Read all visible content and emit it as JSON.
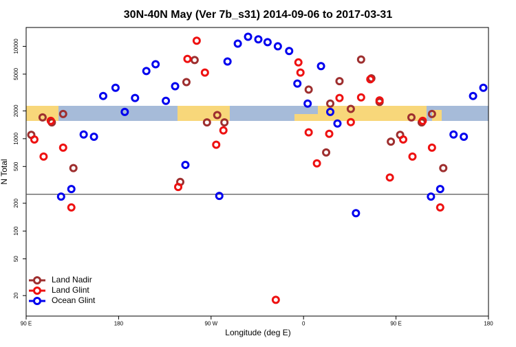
{
  "chart_data": {
    "type": "scatter",
    "title": "30N-40N May (Ver 7b_s31)   2014-09-06 to 2017-03-31",
    "x_label": "Longitude (deg E)",
    "y_label": "N Total",
    "log_y": true,
    "legend": "bottom-left",
    "reference_line": 250,
    "xlim": [
      -270,
      180
    ],
    "xticks": [
      {
        "value": -270,
        "label": "90 E"
      },
      {
        "value": -180,
        "label": "180"
      },
      {
        "value": -90,
        "label": "90 W"
      },
      0,
      {
        "value": 90,
        "label": "90 E"
      },
      180
    ],
    "ylim": [
      12,
      16000
    ],
    "yticks": [
      20,
      50,
      100,
      200,
      500,
      1000,
      2000,
      5000,
      10000
    ],
    "series": [
      {
        "name": "Land Nadir",
        "color": "#9e2f2f",
        "x": [
          -265,
          -254,
          -245,
          -234,
          -224,
          -120,
          -114,
          -106,
          -94,
          -84,
          -77,
          5,
          22,
          26,
          35,
          46,
          56,
          66,
          74,
          85,
          94,
          105,
          115,
          125,
          136
        ],
        "values": [
          1100,
          1700,
          1500,
          1850,
          480,
          340,
          4100,
          7100,
          1500,
          1800,
          1500,
          3400,
          710,
          2400,
          4200,
          2100,
          7200,
          4500,
          2500,
          930,
          1100,
          1700,
          1500,
          1850,
          480
        ]
      },
      {
        "name": "Land Glint",
        "color": "#ee1111",
        "x": [
          -262,
          -253,
          -246,
          -234,
          -226,
          -122,
          -113,
          -104,
          -96,
          -85,
          -78,
          -27,
          -5,
          -3,
          5,
          13,
          25,
          35,
          46,
          56,
          65,
          74,
          84,
          97,
          106,
          116,
          125,
          133
        ],
        "values": [
          980,
          640,
          1560,
          800,
          180,
          300,
          7300,
          11500,
          5200,
          860,
          1230,
          18,
          6700,
          5200,
          1170,
          540,
          1130,
          2760,
          1510,
          2800,
          4400,
          2600,
          380,
          980,
          640,
          1560,
          800,
          180
        ]
      },
      {
        "name": "Ocean Glint",
        "color": "#0000ee",
        "x": [
          -236,
          -226,
          -214,
          -204,
          -195,
          -183,
          -174,
          -164,
          -153,
          -144,
          -134,
          -125,
          -115,
          -82,
          -74,
          -64,
          -54,
          -44,
          -35,
          -25,
          -14,
          -6,
          4,
          17,
          26,
          33,
          51,
          124,
          133,
          146,
          156,
          165,
          175
        ],
        "values": [
          236,
          285,
          1110,
          1050,
          2900,
          3560,
          1950,
          2760,
          5400,
          6400,
          2570,
          3700,
          520,
          240,
          6850,
          10700,
          12700,
          11900,
          11100,
          10000,
          8900,
          3950,
          2400,
          6100,
          1950,
          1460,
          156,
          236,
          285,
          1110,
          1050,
          2900,
          3560
        ]
      }
    ]
  }
}
